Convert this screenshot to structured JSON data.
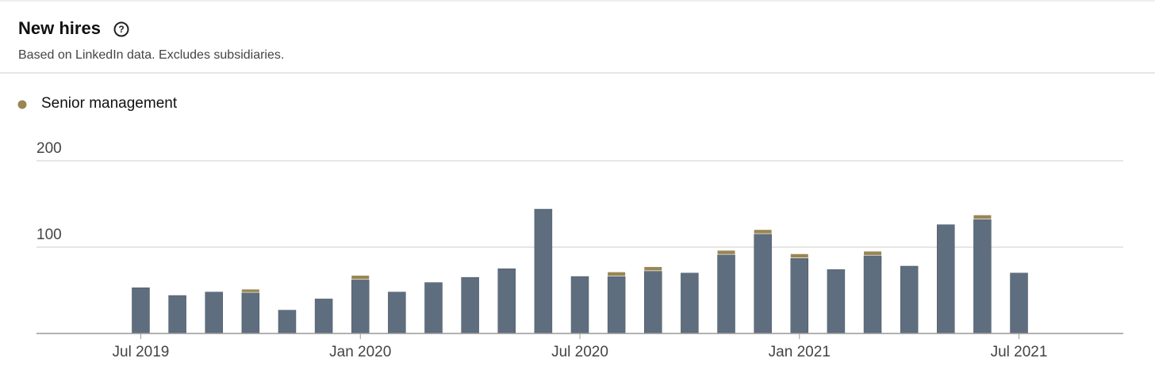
{
  "title": "New hires",
  "subtitle": "Based on LinkedIn data. Excludes subsidiaries.",
  "chart_data": {
    "type": "stacked-bar",
    "categories": [
      "Jul 2019",
      null,
      null,
      null,
      null,
      null,
      "Jan 2020",
      null,
      null,
      null,
      null,
      null,
      "Jul 2020",
      null,
      null,
      null,
      null,
      null,
      "Jan 2021",
      null,
      null,
      null,
      null,
      null,
      "Jul 2021"
    ],
    "series": [
      {
        "color": "#5f6e7e",
        "values": [
          53,
          44,
          48,
          47,
          27,
          40,
          62,
          48,
          59,
          65,
          75,
          144,
          66,
          66,
          72,
          70,
          91,
          115,
          87,
          74,
          90,
          78,
          126,
          132,
          70
        ]
      },
      {
        "name": "Senior management",
        "color": "#9a8651",
        "values": [
          0,
          0,
          0,
          4,
          0,
          0,
          5,
          0,
          0,
          0,
          0,
          0,
          0,
          5,
          5,
          0,
          5,
          5,
          5,
          0,
          5,
          0,
          0,
          5,
          0
        ]
      }
    ],
    "ylim": [
      0,
      200
    ],
    "yticks": [
      100,
      200
    ],
    "grid": true
  }
}
